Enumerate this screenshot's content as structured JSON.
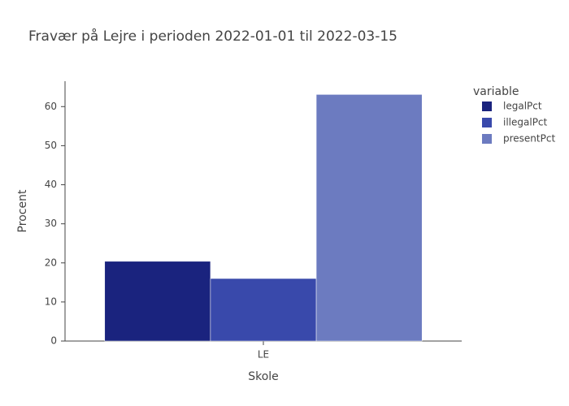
{
  "chart_data": {
    "type": "bar",
    "title": "Fravær på Lejre i perioden 2022-01-01 til 2022-03-15",
    "x_label": "Skole",
    "y_label": "Procent",
    "legend_title": "variable",
    "categories": [
      "LE"
    ],
    "series": [
      {
        "name": "legalPct",
        "color": "#1a237e",
        "values": [
          20.4
        ]
      },
      {
        "name": "illegalPct",
        "color": "#3949ab",
        "values": [
          16.0
        ]
      },
      {
        "name": "presentPct",
        "color": "#6c7bc0",
        "values": [
          63.1
        ]
      }
    ],
    "ylim": [
      0,
      66.5
    ],
    "yticks": [
      0,
      10,
      20,
      30,
      40,
      50,
      60
    ],
    "grid": false,
    "legend_position": "right"
  }
}
